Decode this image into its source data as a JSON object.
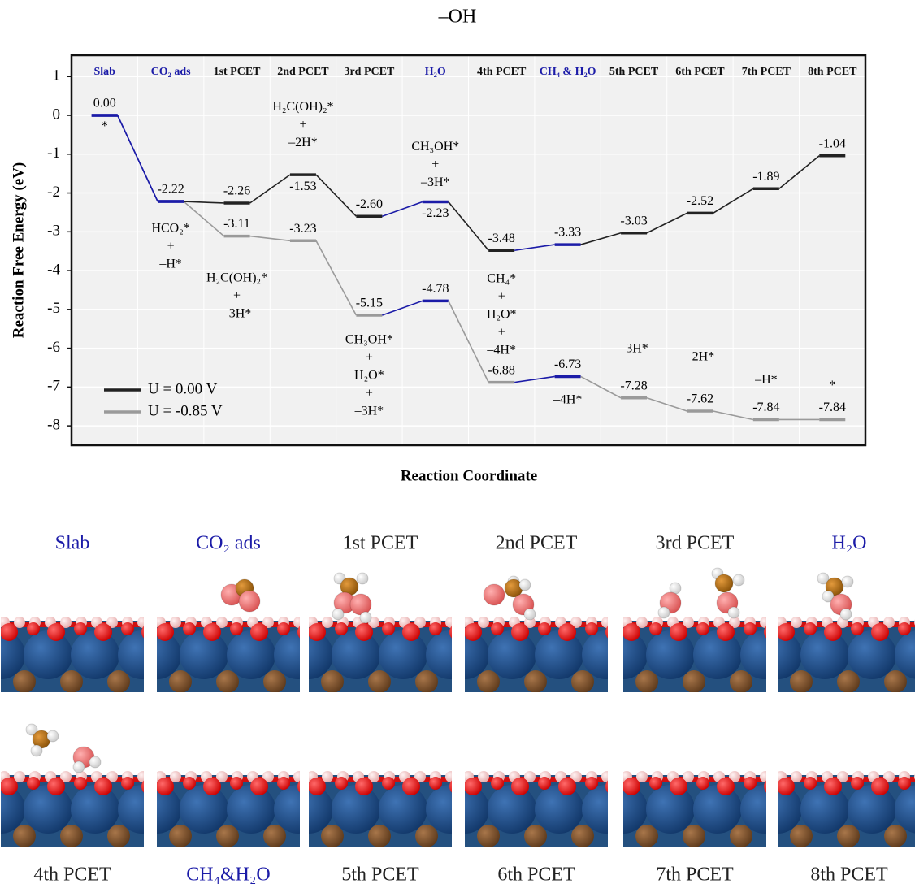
{
  "chart_data": {
    "type": "energy-profile",
    "title": "–OH",
    "ylabel": "Reaction  Free  Energy (eV)",
    "xlabel": "Reaction Coordinate",
    "categories": [
      "Slab",
      "CO₂ ads",
      "1st PCET",
      "2nd PCET",
      "3rd PCET",
      "H₂O",
      "4th PCET",
      "CH₄ & H₂O",
      "5th PCET",
      "6th PCET",
      "7th PCET",
      "8th PCET"
    ],
    "category_colors": [
      "#1c1ca8",
      "#1c1ca8",
      "#111111",
      "#111111",
      "#111111",
      "#1c1ca8",
      "#111111",
      "#1c1ca8",
      "#111111",
      "#111111",
      "#111111",
      "#111111"
    ],
    "series": [
      {
        "name": "U = 0.00 V",
        "color": "#222222",
        "values": [
          0,
          -2.22,
          -2.26,
          -1.53,
          -2.6,
          -2.23,
          -3.48,
          -3.33,
          -3.03,
          -2.52,
          -1.89,
          -1.04
        ],
        "value_labels": [
          "0.00",
          "-2.22",
          "-2.26",
          "-1.53",
          "-2.60",
          "-2.23",
          "-3.48",
          "-3.33",
          "-3.03",
          "-2.52",
          "-1.89",
          "-1.04"
        ]
      },
      {
        "name": "U = -0.85 V",
        "color": "#9a9a9a",
        "values": [
          0,
          -2.22,
          -3.11,
          -3.23,
          -5.15,
          -4.78,
          -6.88,
          -6.73,
          -7.28,
          -7.62,
          -7.84,
          -7.84
        ],
        "value_labels": [
          null,
          null,
          "-3.11",
          "-3.23",
          "-5.15",
          "-4.78",
          "-6.88",
          "-6.73",
          "-7.28",
          "-7.62",
          "-7.84",
          "-7.84"
        ]
      }
    ],
    "annotations": [
      [
        "*"
      ],
      [
        "HCO₂*",
        "+",
        "–H*"
      ],
      [
        "H₂C(OH)₂*",
        "+",
        "–2H*"
      ],
      [
        "H₂C(OH)₂*",
        "+",
        "–3H*"
      ],
      [
        "CH₃OH*",
        "+",
        "–3H*"
      ],
      [
        "CH₃OH*",
        "+",
        "H₂O*",
        "+",
        "–3H*"
      ],
      [
        "CH₄*",
        "+",
        "H₂O*",
        "+",
        "–4H*"
      ],
      [
        "–4H*"
      ],
      [
        "–3H*"
      ],
      [
        "–2H*"
      ],
      [
        "–H*"
      ],
      [
        "*"
      ]
    ],
    "ylim": [
      -8.5,
      1.55
    ],
    "yticks": [
      1,
      0,
      -1,
      -2,
      -3,
      -4,
      -5,
      -6,
      -7,
      -8
    ],
    "grid": true,
    "legend": "lower left"
  },
  "panels": [
    {
      "label": "Slab",
      "color": "#1c1ca8"
    },
    {
      "label": "CO₂ ads",
      "color": "#1c1ca8"
    },
    {
      "label": "1st PCET",
      "color": "#222222"
    },
    {
      "label": "2nd PCET",
      "color": "#222222"
    },
    {
      "label": "3rd PCET",
      "color": "#222222"
    },
    {
      "label": "H₂O",
      "color": "#1c1ca8"
    },
    {
      "label": "4th PCET",
      "color": "#222222"
    },
    {
      "label": "CH₄&H₂O",
      "color": "#1c1ca8"
    },
    {
      "label": "5th PCET",
      "color": "#222222"
    },
    {
      "label": "6th PCET",
      "color": "#222222"
    },
    {
      "label": "7th PCET",
      "color": "#222222"
    },
    {
      "label": "8th PCET",
      "color": "#222222"
    }
  ]
}
